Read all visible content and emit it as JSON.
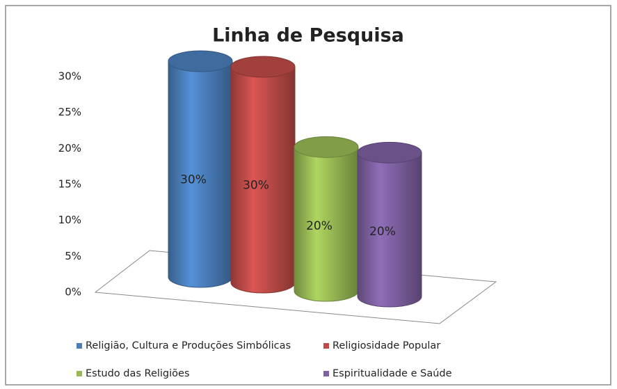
{
  "chart_data": {
    "type": "cylinder",
    "title": "Linha de Pesquisa",
    "ylim": [
      0,
      30
    ],
    "yticks": [
      {
        "value": 0,
        "label": "0%"
      },
      {
        "value": 5,
        "label": "5%"
      },
      {
        "value": 10,
        "label": "10%"
      },
      {
        "value": 15,
        "label": "15%"
      },
      {
        "value": 20,
        "label": "20%"
      },
      {
        "value": 25,
        "label": "25%"
      },
      {
        "value": 30,
        "label": "30%"
      }
    ],
    "series": [
      {
        "name": "Religião, Cultura e Produções Simbólicas",
        "color": "#4a7ebb",
        "values": [
          30
        ],
        "value_labels": [
          "30%"
        ]
      },
      {
        "name": "Religiosidade Popular",
        "color": "#be4b48",
        "values": [
          30
        ],
        "value_labels": [
          "30%"
        ]
      },
      {
        "name": "Estudo das Religiões",
        "color": "#98b954",
        "values": [
          20
        ],
        "value_labels": [
          "20%"
        ]
      },
      {
        "name": "Espiritualidade e Saúde",
        "color": "#7d60a0",
        "values": [
          20
        ],
        "value_labels": [
          "20%"
        ]
      }
    ]
  }
}
